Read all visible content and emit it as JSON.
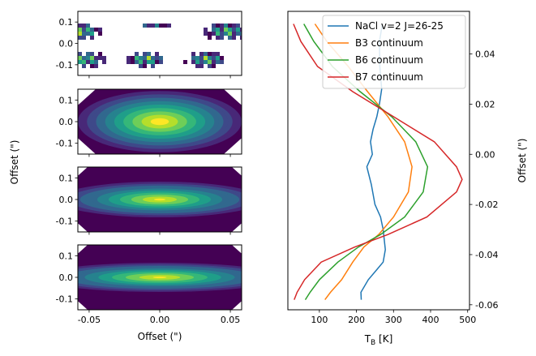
{
  "chart_data": [
    {
      "type": "heatmap",
      "panel": 1,
      "xlim": [
        -0.058,
        0.058
      ],
      "ylim": [
        -0.15,
        0.15
      ],
      "xticks": [
        "-0.05",
        "0.00",
        "0.05"
      ],
      "yticks": [
        "0.1",
        "0.0",
        "-0.1"
      ],
      "colormap": "viridis"
    },
    {
      "type": "heatmap",
      "panel": 2,
      "xlim": [
        -0.058,
        0.058
      ],
      "ylim": [
        -0.15,
        0.15
      ],
      "yticks": [
        "0.1",
        "0.0",
        "-0.1"
      ],
      "colormap": "viridis"
    },
    {
      "type": "heatmap",
      "panel": 3,
      "xlim": [
        -0.058,
        0.058
      ],
      "ylim": [
        -0.15,
        0.15
      ],
      "yticks": [
        "0.1",
        "0.0",
        "-0.1"
      ],
      "colormap": "viridis"
    },
    {
      "type": "heatmap",
      "panel": 4,
      "xlim": [
        -0.058,
        0.058
      ],
      "ylim": [
        -0.15,
        0.15
      ],
      "xticks": [
        "-0.05",
        "0.00",
        "0.05"
      ],
      "yticks": [
        "0.1",
        "0.0",
        "-0.1"
      ],
      "xlabel": "Offset (\")",
      "colormap": "viridis"
    },
    {
      "type": "line",
      "xlabel": "T_B [K]",
      "ylabel": "Offset (\")",
      "xlim": [
        15,
        505
      ],
      "ylim": [
        -0.062,
        0.057
      ],
      "xticks": [
        100,
        200,
        300,
        400,
        500
      ],
      "yticks": [
        0.04,
        0.02,
        0.0,
        -0.02,
        -0.04,
        -0.06
      ],
      "legend_position": "top-right",
      "series": [
        {
          "name": "NaCl v=2 J=26-25",
          "color": "#1f77b4",
          "points": [
            [
              270,
              0.052
            ],
            [
              262,
              0.045
            ],
            [
              263,
              0.035
            ],
            [
              268,
              0.026
            ],
            [
              262,
              0.02
            ],
            [
              255,
              0.015
            ],
            [
              245,
              0.01
            ],
            [
              238,
              0.005
            ],
            [
              243,
              0.0
            ],
            [
              228,
              -0.005
            ],
            [
              240,
              -0.012
            ],
            [
              250,
              -0.02
            ],
            [
              265,
              -0.025
            ],
            [
              272,
              -0.03
            ],
            [
              278,
              -0.038
            ],
            [
              272,
              -0.043
            ],
            [
              255,
              -0.046
            ],
            [
              232,
              -0.05
            ],
            [
              212,
              -0.055
            ],
            [
              213,
              -0.058
            ]
          ]
        },
        {
          "name": "B3 continuum",
          "color": "#ff7f0e",
          "points": [
            [
              88,
              0.052
            ],
            [
              120,
              0.045
            ],
            [
              178,
              0.035
            ],
            [
              230,
              0.025
            ],
            [
              285,
              0.015
            ],
            [
              330,
              0.005
            ],
            [
              350,
              -0.005
            ],
            [
              340,
              -0.015
            ],
            [
              300,
              -0.025
            ],
            [
              260,
              -0.032
            ],
            [
              220,
              -0.037
            ],
            [
              190,
              -0.043
            ],
            [
              160,
              -0.05
            ],
            [
              130,
              -0.055
            ],
            [
              115,
              -0.058
            ]
          ]
        },
        {
          "name": "B6 continuum",
          "color": "#2ca02c",
          "points": [
            [
              58,
              0.052
            ],
            [
              85,
              0.045
            ],
            [
              135,
              0.035
            ],
            [
              210,
              0.025
            ],
            [
              295,
              0.015
            ],
            [
              360,
              0.005
            ],
            [
              392,
              -0.005
            ],
            [
              380,
              -0.015
            ],
            [
              330,
              -0.025
            ],
            [
              265,
              -0.032
            ],
            [
              205,
              -0.037
            ],
            [
              150,
              -0.043
            ],
            [
              100,
              -0.05
            ],
            [
              75,
              -0.055
            ],
            [
              62,
              -0.058
            ]
          ]
        },
        {
          "name": "B7 continuum",
          "color": "#d62728",
          "points": [
            [
              30,
              0.052
            ],
            [
              50,
              0.045
            ],
            [
              95,
              0.035
            ],
            [
              190,
              0.025
            ],
            [
              300,
              0.015
            ],
            [
              410,
              0.005
            ],
            [
              470,
              -0.005
            ],
            [
              485,
              -0.01
            ],
            [
              470,
              -0.015
            ],
            [
              390,
              -0.025
            ],
            [
              285,
              -0.032
            ],
            [
              195,
              -0.037
            ],
            [
              105,
              -0.043
            ],
            [
              60,
              -0.05
            ],
            [
              40,
              -0.055
            ],
            [
              32,
              -0.058
            ]
          ]
        }
      ]
    }
  ],
  "left_ylabel": "Offset (\")",
  "left_xlabel": "Offset (\")",
  "right_xlabel": "T_B [K]",
  "right_ylabel": "Offset (\")"
}
